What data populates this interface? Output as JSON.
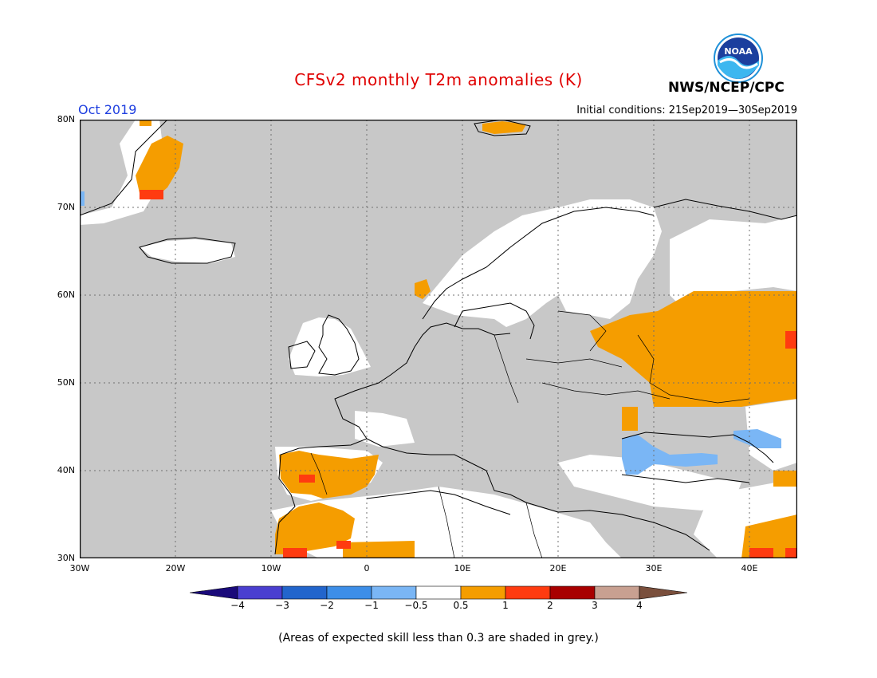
{
  "title": "CFSv2 monthly T2m anomalies (K)",
  "agency": "NWS/NCEP/CPC",
  "logo_text": "NOAA",
  "month_label": "Oct 2019",
  "initial_conditions": "Initial conditions: 21Sep2019—30Sep2019",
  "note": "(Areas of expected skill less than 0.3 are shaded in grey.)",
  "map": {
    "lon_range": [
      -30,
      45
    ],
    "lat_range": [
      30,
      80
    ],
    "lat_ticks": [
      "30N",
      "40N",
      "50N",
      "60N",
      "70N",
      "80N"
    ],
    "lon_ticks": [
      "30W",
      "20W",
      "10W",
      "0",
      "10E",
      "20E",
      "30E",
      "40E"
    ],
    "grid": "dotted",
    "background_low_skill": "#c8c8c8",
    "neutral_fill": "#ffffff"
  },
  "colorbar": {
    "labels": [
      "−4",
      "−3",
      "−2",
      "−1",
      "−0.5",
      "0.5",
      "1",
      "2",
      "3",
      "4"
    ],
    "colors": [
      "#1a0a7a",
      "#4a3fd0",
      "#2265cc",
      "#3d8ee8",
      "#7ab6f5",
      "#ffffff",
      "#f59d00",
      "#ff3b10",
      "#a80000",
      "#c8a091",
      "#7a4f3c"
    ]
  },
  "anomaly_regions": [
    {
      "name": "Western Russia",
      "category": "0.5 to 1",
      "color": "#f59d00"
    },
    {
      "name": "Iberian Peninsula",
      "category": "0.5 to 1",
      "color": "#f59d00"
    },
    {
      "name": "Morocco / NW Africa",
      "category": "0.5 to 1",
      "color": "#f59d00"
    },
    {
      "name": "Greenland east coast",
      "category": "0.5 to 1",
      "color": "#f59d00"
    },
    {
      "name": "Svalbard",
      "category": "0.5 to 1",
      "color": "#f59d00"
    },
    {
      "name": "Black Sea / Turkey",
      "category": "-1 to -0.5",
      "color": "#7ab6f5"
    },
    {
      "name": "Scandinavia",
      "category": "-0.5 to 0.5",
      "color": "#ffffff"
    },
    {
      "name": "Central Europe / Mediterranean",
      "category": "low skill",
      "color": "#c8c8c8"
    }
  ]
}
